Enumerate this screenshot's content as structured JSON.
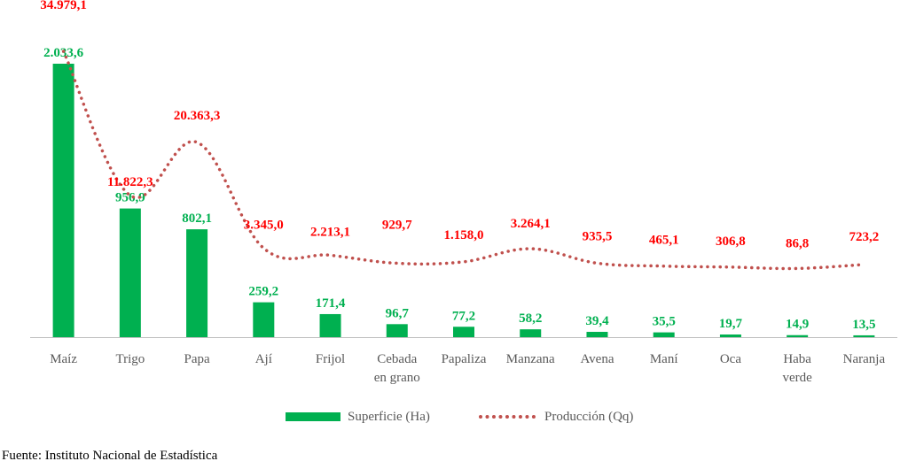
{
  "chart_data": {
    "type": "bar",
    "categories": [
      [
        "Maíz"
      ],
      [
        "Trigo"
      ],
      [
        "Papa"
      ],
      [
        "Ají"
      ],
      [
        "Frijol"
      ],
      [
        "Cebada",
        "en grano"
      ],
      [
        "Papaliza"
      ],
      [
        "Manzana"
      ],
      [
        "Avena"
      ],
      [
        "Maní"
      ],
      [
        "Oca"
      ],
      [
        "Haba",
        "verde"
      ],
      [
        "Naranja"
      ]
    ],
    "series": [
      {
        "name": "Superficie (Ha)",
        "type": "bar",
        "axis": "left",
        "values": [
          2033.6,
          956.9,
          802.1,
          259.2,
          171.4,
          96.7,
          77.2,
          58.2,
          39.4,
          35.5,
          19.7,
          14.9,
          13.5
        ],
        "labels": [
          "2.033,6",
          "956,9",
          "802,1",
          "259,2",
          "171,4",
          "96,7",
          "77,2",
          "58,2",
          "39,4",
          "35,5",
          "19,7",
          "14,9",
          "13,5"
        ],
        "color": "#00b050"
      },
      {
        "name": "Producción (Qq)",
        "type": "line",
        "style": "dotted",
        "axis": "right",
        "values": [
          34979.1,
          11822.3,
          20363.3,
          3345.0,
          2213.1,
          929.7,
          1158.0,
          3264.1,
          935.5,
          465.1,
          306.8,
          86.8,
          723.2
        ],
        "labels": [
          "34.979,1",
          "11.822,3",
          "20.363,3",
          "3.345,0",
          "2.213,1",
          "929,7",
          "1.158,0",
          "3.264,1",
          "935,5",
          "465,1",
          "306,8",
          "86,8",
          "723,2"
        ],
        "color": "#c0504d",
        "label_color": "#ff0000"
      }
    ],
    "ylim_left": [
      0,
      2033.6
    ],
    "ylim_right": [
      0,
      34979.1
    ],
    "grid": false,
    "legend_position": "bottom"
  },
  "source": "Fuente: Instituto Nacional de Estadística",
  "colors": {
    "bar": "#00b050",
    "bar_label": "#00b050",
    "line": "#c0504d",
    "line_label": "#ff0000",
    "axis": "#bfbfbf",
    "category_text": "#595959"
  }
}
